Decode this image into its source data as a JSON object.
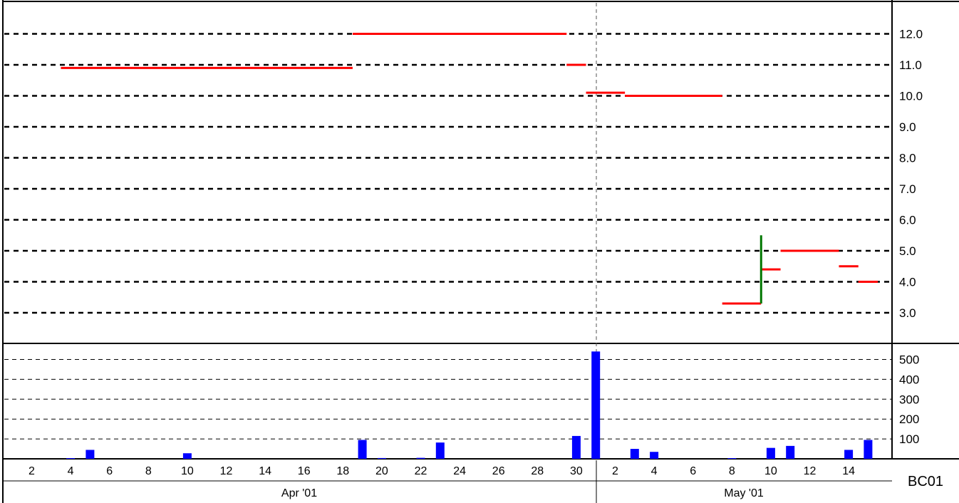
{
  "chart_data": {
    "type": "line",
    "symbol": "BC01",
    "price_panel": {
      "ylim": [
        2.0,
        12.9
      ],
      "yticks": [
        3.0,
        4.0,
        5.0,
        6.0,
        7.0,
        8.0,
        9.0,
        10.0,
        11.0,
        12.0
      ],
      "ytick_labels": [
        "3.0",
        "4.0",
        "5.0",
        "6.0",
        "7.0",
        "8.0",
        "9.0",
        "10.0",
        "11.0",
        "12.0"
      ],
      "grid": true,
      "segments": [
        {
          "x0": "Apr 4",
          "x1": "Apr 19",
          "y": 10.9
        },
        {
          "x0": "Apr 19",
          "x1": "Apr 30",
          "y": 12.0
        },
        {
          "x0": "Apr 30",
          "x1": "May 1",
          "y": 11.0
        },
        {
          "x0": "May 1",
          "x1": "May 3",
          "y": 10.1
        },
        {
          "x0": "May 3",
          "x1": "May 8",
          "y": 10.0
        },
        {
          "x0": "May 8",
          "x1": "May 10",
          "y": 3.3
        },
        {
          "x0": "May 10",
          "x1": "May 11",
          "y": 4.4
        },
        {
          "x0": "May 11",
          "x1": "May 14",
          "y": 5.0
        },
        {
          "x0": "May 14",
          "x1": "May 15",
          "y": 4.5
        },
        {
          "x0": "May 15",
          "x1": "May 16",
          "y": 4.0
        }
      ],
      "vertical_marks": [
        {
          "x": "May 10",
          "y_low": 3.3,
          "y_high": 5.5,
          "color": "#007700"
        }
      ],
      "line_color": "#ff0000"
    },
    "volume_panel": {
      "ylim": [
        0,
        560
      ],
      "yticks": [
        100,
        200,
        300,
        400,
        500
      ],
      "ytick_labels": [
        "100",
        "200",
        "300",
        "400",
        "500"
      ],
      "grid": true,
      "bar_color": "#0000ff",
      "bars": [
        {
          "x": "Apr 4",
          "value": 2
        },
        {
          "x": "Apr 5",
          "value": 45
        },
        {
          "x": "Apr 10",
          "value": 28
        },
        {
          "x": "Apr 19",
          "value": 95
        },
        {
          "x": "Apr 20",
          "value": 4
        },
        {
          "x": "Apr 22",
          "value": 5
        },
        {
          "x": "Apr 23",
          "value": 82
        },
        {
          "x": "Apr 30",
          "value": 115
        },
        {
          "x": "May 1",
          "value": 540
        },
        {
          "x": "May 3",
          "value": 50
        },
        {
          "x": "May 4",
          "value": 35
        },
        {
          "x": "May 8",
          "value": 2
        },
        {
          "x": "May 10",
          "value": 55
        },
        {
          "x": "May 11",
          "value": 65
        },
        {
          "x": "May 14",
          "value": 45
        },
        {
          "x": "May 15",
          "value": 95
        }
      ]
    },
    "x_axis": {
      "tick_labels_apr": [
        "2",
        "4",
        "6",
        "8",
        "10",
        "12",
        "14",
        "16",
        "18",
        "20",
        "22",
        "24",
        "26",
        "28",
        "30"
      ],
      "tick_labels_may": [
        "2",
        "4",
        "6",
        "8",
        "10",
        "12",
        "14"
      ],
      "months": [
        "Apr '01",
        "May '01"
      ]
    }
  }
}
